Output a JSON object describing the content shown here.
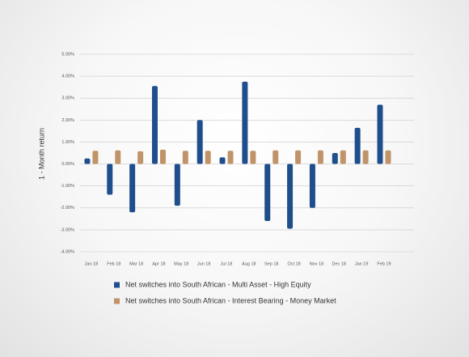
{
  "chart_data": {
    "type": "bar",
    "y_label": "1 - Month return",
    "categories": [
      "Jan 18",
      "Feb 18",
      "Mar 18",
      "Apr 18",
      "May 18",
      "Jun 18",
      "Jul 18",
      "Aug 18",
      "Sep 18",
      "Oct 18",
      "Nov 18",
      "Dec 18",
      "Jan 19",
      "Feb 19"
    ],
    "series": [
      {
        "name": "Net switches into South African - Multi Asset - High Equity",
        "color": "#1f4e8c",
        "values": [
          0.25,
          -1.4,
          -2.2,
          3.55,
          -1.9,
          2.0,
          0.3,
          3.75,
          -2.6,
          -2.95,
          -2.0,
          0.5,
          1.65,
          2.7
        ]
      },
      {
        "name": "Net switches into South African - Interest Bearing - Money Market",
        "color": "#c09468",
        "values": [
          0.6,
          0.62,
          0.58,
          0.65,
          0.6,
          0.6,
          0.6,
          0.6,
          0.62,
          0.62,
          0.62,
          0.62,
          0.62,
          0.62
        ]
      }
    ],
    "ylim": [
      -4,
      5
    ],
    "yticks": [
      {
        "value": 5,
        "label": "5.00%"
      },
      {
        "value": 4,
        "label": "4.00%"
      },
      {
        "value": 3,
        "label": "3.00%"
      },
      {
        "value": 2,
        "label": "2.00%"
      },
      {
        "value": 1,
        "label": "1.00%"
      },
      {
        "value": 0,
        "label": "0.00%"
      },
      {
        "value": -1,
        "label": "-1.00%"
      },
      {
        "value": -2,
        "label": "-2.00%"
      },
      {
        "value": -3,
        "label": "-3.00%"
      },
      {
        "value": -4,
        "label": "-4.00%"
      }
    ],
    "grid": true
  }
}
